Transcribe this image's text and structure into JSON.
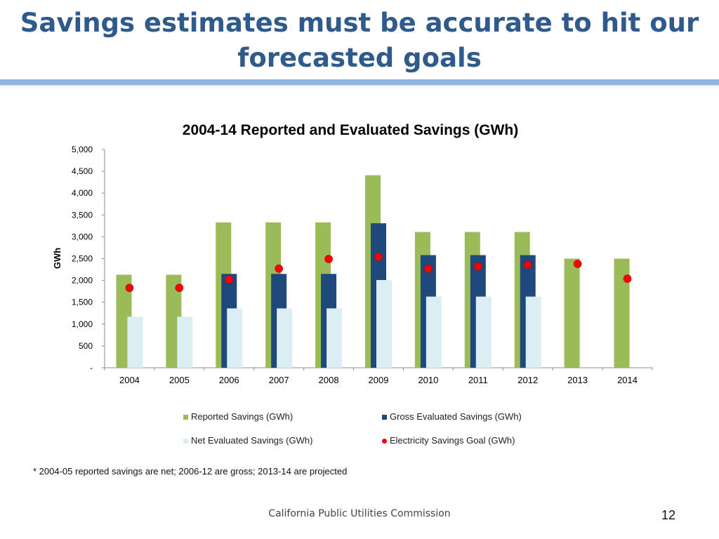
{
  "slide": {
    "title_line1": "Savings estimates must be accurate to hit our",
    "title_line2": "forecasted goals",
    "footnote": "* 2004-05 reported savings are net; 2006-12 are gross; 2013-14 are projected",
    "footer": "California Public Utilities Commission",
    "page_number": "12"
  },
  "chart_data": {
    "type": "bar",
    "title": "2004-14 Reported and Evaluated Savings (GWh)",
    "xlabel": "",
    "ylabel": "GWh",
    "ylim": [
      0,
      5000
    ],
    "ytick_values": [
      0,
      500,
      1000,
      1500,
      2000,
      2500,
      3000,
      3500,
      4000,
      4500,
      5000
    ],
    "ytick_labels": [
      "-",
      "500",
      "1,000",
      "1,500",
      "2,000",
      "2,500",
      "3,000",
      "3,500",
      "4,000",
      "4,500",
      "5,000"
    ],
    "categories": [
      "2004",
      "2005",
      "2006",
      "2007",
      "2008",
      "2009",
      "2010",
      "2011",
      "2012",
      "2013",
      "2014"
    ],
    "series": [
      {
        "name": "Reported Savings (GWh)",
        "kind": "bar",
        "color": "#9bbb59",
        "values": [
          2130,
          2130,
          3330,
          3330,
          3330,
          4410,
          3110,
          3110,
          3110,
          2500,
          2500
        ]
      },
      {
        "name": "Gross Evaluated Savings (GWh)",
        "kind": "bar",
        "color": "#1f497d",
        "values": [
          null,
          null,
          2150,
          2150,
          2150,
          3310,
          2580,
          2580,
          2580,
          null,
          null
        ]
      },
      {
        "name": "Net Evaluated Savings (GWh)",
        "kind": "bar",
        "color": "#dbeef4",
        "values": [
          1170,
          1170,
          1360,
          1360,
          1360,
          2010,
          1630,
          1630,
          1630,
          null,
          null
        ]
      },
      {
        "name": "Electricity Savings Goal (GWh)",
        "kind": "marker",
        "color": "#ff0000",
        "values": [
          1830,
          1830,
          2020,
          2270,
          2490,
          2540,
          2270,
          2320,
          2360,
          2380,
          2040
        ]
      }
    ],
    "legend_position": "bottom",
    "grid": false
  }
}
